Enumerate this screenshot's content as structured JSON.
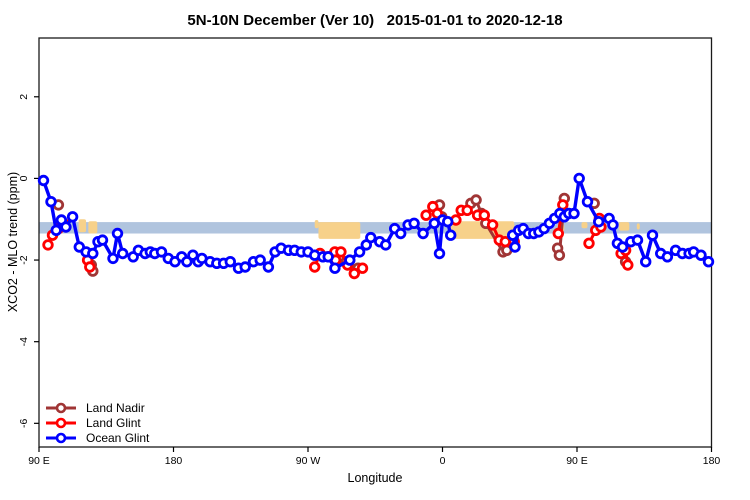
{
  "chart_data": {
    "type": "line",
    "title": "5N-10N December (Ver 10)   2015-01-01 to 2020-12-18",
    "xlabel": "Longitude",
    "ylabel": "XCO2 - MLO trend (ppm)",
    "xlim": [
      90,
      540
    ],
    "ylim": [
      -6.58,
      3.44
    ],
    "gap_break": 12,
    "xticks": [
      {
        "pos": 90,
        "label": "90 E"
      },
      {
        "pos": 180,
        "label": "180"
      },
      {
        "pos": 270,
        "label": "90 W"
      },
      {
        "pos": 360,
        "label": "0"
      },
      {
        "pos": 450,
        "label": "90 E"
      },
      {
        "pos": 540,
        "label": "180"
      }
    ],
    "yticks": [
      {
        "pos": 2,
        "label": "2"
      },
      {
        "pos": 0,
        "label": "0"
      },
      {
        "pos": -2,
        "label": "-2"
      },
      {
        "pos": -4,
        "label": "-4"
      },
      {
        "pos": -6,
        "label": "-6"
      }
    ],
    "band": {
      "color": "#B0C4DE",
      "v_top": -1.07,
      "v_bottom": -1.35
    },
    "land_color": "#F7D18A",
    "land_patches": [
      {
        "lon0": 116.5,
        "lon1": 121.5,
        "v_top": -1.0,
        "v_bottom": -1.32
      },
      {
        "lon0": 123,
        "lon1": 129,
        "v_top": -1.05,
        "v_bottom": -1.35
      },
      {
        "lon0": 274.5,
        "lon1": 277,
        "v_top": -1.02,
        "v_bottom": -1.22
      },
      {
        "lon0": 277,
        "lon1": 305,
        "v_top": -1.07,
        "v_bottom": -1.48
      },
      {
        "lon0": 365,
        "lon1": 408,
        "v_top": -1.05,
        "v_bottom": -1.48
      },
      {
        "lon0": 437,
        "lon1": 441.5,
        "v_top": -1.12,
        "v_bottom": -1.3
      },
      {
        "lon0": 453,
        "lon1": 457,
        "v_top": -1.07,
        "v_bottom": -1.22
      },
      {
        "lon0": 478,
        "lon1": 485,
        "v_top": -1.07,
        "v_bottom": -1.28
      },
      {
        "lon0": 490,
        "lon1": 492,
        "v_top": -1.1,
        "v_bottom": -1.25
      }
    ],
    "series": [
      {
        "name": "Land Nadir",
        "color": "#A03535",
        "line_width": 3,
        "points": [
          [
            103,
            -0.65
          ],
          [
            125,
            -2.12
          ],
          [
            126,
            -2.27
          ],
          [
            291,
            -1.96
          ],
          [
            295.5,
            -2.04
          ],
          [
            303.5,
            -2.2
          ],
          [
            358,
            -0.65
          ],
          [
            359.5,
            -0.94
          ],
          [
            379,
            -0.61
          ],
          [
            382.5,
            -0.53
          ],
          [
            386,
            -0.86
          ],
          [
            389,
            -1.1
          ],
          [
            400.5,
            -1.8
          ],
          [
            403,
            -1.76
          ],
          [
            437,
            -1.71
          ],
          [
            438.2,
            -1.88
          ],
          [
            441.5,
            -0.49
          ],
          [
            461.5,
            -0.61
          ],
          [
            482.5,
            -2.04
          ]
        ]
      },
      {
        "name": "Land Glint",
        "color": "#FF0000",
        "line_width": 3,
        "points": [
          [
            96,
            -1.63
          ],
          [
            99,
            -1.39
          ],
          [
            103,
            -1.23
          ],
          [
            106.5,
            -1.11
          ],
          [
            122.5,
            -2.0
          ],
          [
            124,
            -2.17
          ],
          [
            274.5,
            -2.17
          ],
          [
            278,
            -1.84
          ],
          [
            288,
            -1.8
          ],
          [
            288.5,
            -2.0
          ],
          [
            292,
            -1.8
          ],
          [
            296.5,
            -2.12
          ],
          [
            301,
            -2.33
          ],
          [
            306.5,
            -2.2
          ],
          [
            349,
            -0.9
          ],
          [
            353.5,
            -0.69
          ],
          [
            356.5,
            -0.86
          ],
          [
            369,
            -1.02
          ],
          [
            372.5,
            -0.78
          ],
          [
            376.5,
            -0.78
          ],
          [
            383.5,
            -0.9
          ],
          [
            388,
            -0.9
          ],
          [
            393.5,
            -1.14
          ],
          [
            398,
            -1.51
          ],
          [
            402,
            -1.55
          ],
          [
            408,
            -1.55
          ],
          [
            437.5,
            -1.35
          ],
          [
            440.5,
            -0.65
          ],
          [
            458,
            -1.59
          ],
          [
            462.5,
            -1.27
          ],
          [
            465,
            -0.98
          ],
          [
            466,
            -1.19
          ],
          [
            479.5,
            -1.84
          ],
          [
            482.5,
            -1.76
          ],
          [
            484,
            -2.12
          ]
        ]
      },
      {
        "name": "Ocean Glint",
        "color": "#0000FF",
        "line_width": 3.4,
        "points": [
          [
            93,
            -0.05
          ],
          [
            98,
            -0.57
          ],
          [
            101.5,
            -1.27
          ],
          [
            105,
            -1.02
          ],
          [
            108,
            -1.19
          ],
          [
            112.5,
            -0.94
          ],
          [
            117,
            -1.68
          ],
          [
            121.5,
            -1.8
          ],
          [
            126,
            -1.84
          ],
          [
            129.5,
            -1.55
          ],
          [
            132.5,
            -1.51
          ],
          [
            139.5,
            -1.96
          ],
          [
            142.5,
            -1.35
          ],
          [
            146,
            -1.84
          ],
          [
            153,
            -1.92
          ],
          [
            156.5,
            -1.76
          ],
          [
            161,
            -1.84
          ],
          [
            164.5,
            -1.8
          ],
          [
            167.5,
            -1.84
          ],
          [
            172,
            -1.8
          ],
          [
            176.5,
            -1.96
          ],
          [
            181,
            -2.04
          ],
          [
            185.5,
            -1.92
          ],
          [
            189,
            -2.04
          ],
          [
            193,
            -1.88
          ],
          [
            196.5,
            -2.04
          ],
          [
            199,
            -1.96
          ],
          [
            204.5,
            -2.04
          ],
          [
            209,
            -2.08
          ],
          [
            213.5,
            -2.08
          ],
          [
            218,
            -2.04
          ],
          [
            223.5,
            -2.2
          ],
          [
            228,
            -2.17
          ],
          [
            233.5,
            -2.04
          ],
          [
            238,
            -2.0
          ],
          [
            243.5,
            -2.17
          ],
          [
            248,
            -1.8
          ],
          [
            252,
            -1.71
          ],
          [
            257,
            -1.76
          ],
          [
            261,
            -1.76
          ],
          [
            265.5,
            -1.8
          ],
          [
            270,
            -1.8
          ],
          [
            274.5,
            -1.88
          ],
          [
            280,
            -1.92
          ],
          [
            283.5,
            -1.92
          ],
          [
            288,
            -2.2
          ],
          [
            298,
            -2.0
          ],
          [
            304.5,
            -1.8
          ],
          [
            309,
            -1.63
          ],
          [
            312,
            -1.45
          ],
          [
            318,
            -1.55
          ],
          [
            322,
            -1.63
          ],
          [
            328,
            -1.23
          ],
          [
            332,
            -1.35
          ],
          [
            337,
            -1.14
          ],
          [
            341,
            -1.1
          ],
          [
            347,
            -1.35
          ],
          [
            354.5,
            -1.1
          ],
          [
            358,
            -1.84
          ],
          [
            360,
            -1.02
          ],
          [
            363.5,
            -1.06
          ],
          [
            365.5,
            -1.39
          ],
          [
            407,
            -1.39
          ],
          [
            408.5,
            -1.68
          ],
          [
            411,
            -1.27
          ],
          [
            414,
            -1.23
          ],
          [
            417.5,
            -1.35
          ],
          [
            421,
            -1.35
          ],
          [
            424.5,
            -1.31
          ],
          [
            428,
            -1.23
          ],
          [
            431.5,
            -1.1
          ],
          [
            435,
            -0.98
          ],
          [
            438.5,
            -0.86
          ],
          [
            441.5,
            -0.94
          ],
          [
            444.5,
            -0.86
          ],
          [
            448,
            -0.86
          ],
          [
            451.5,
            0.0
          ],
          [
            457,
            -0.57
          ],
          [
            464.5,
            -1.06
          ],
          [
            471.5,
            -0.98
          ],
          [
            474,
            -1.14
          ],
          [
            477,
            -1.59
          ],
          [
            480.5,
            -1.68
          ],
          [
            486,
            -1.55
          ],
          [
            490.5,
            -1.51
          ],
          [
            496,
            -2.04
          ],
          [
            500.5,
            -1.39
          ],
          [
            506,
            -1.84
          ],
          [
            510.5,
            -1.92
          ],
          [
            516,
            -1.76
          ],
          [
            520.5,
            -1.84
          ],
          [
            525,
            -1.84
          ],
          [
            528,
            -1.8
          ],
          [
            533,
            -1.88
          ],
          [
            538,
            -2.04
          ]
        ]
      }
    ],
    "legend_position": "bottom-left"
  }
}
